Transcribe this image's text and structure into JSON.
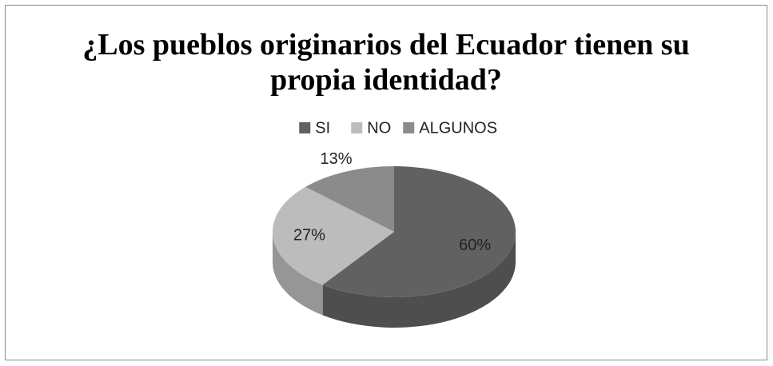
{
  "chart_data": {
    "type": "pie",
    "title": "¿Los pueblos originarios del Ecuador tienen su propia identidad?",
    "categories": [
      "SI",
      "NO",
      "ALGUNOS"
    ],
    "values": [
      60,
      27,
      13
    ],
    "value_labels": [
      "60%",
      "27%",
      "13%"
    ],
    "colors": [
      "#616161",
      "#bcbcbc",
      "#8b8b8b"
    ],
    "legend": "top"
  }
}
